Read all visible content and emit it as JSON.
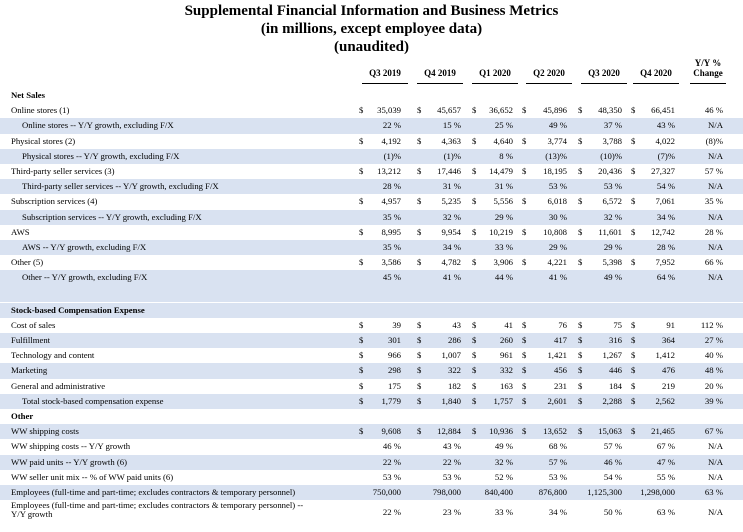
{
  "title_lines": [
    "Supplemental Financial Information and Business Metrics",
    "(in millions, except employee data)",
    "(unaudited)"
  ],
  "columns": [
    "Q3 2019",
    "Q4 2019",
    "Q1 2020",
    "Q2 2020",
    "Q3 2020",
    "Q4 2020",
    "Y/Y %\nChange"
  ],
  "sections": [
    {
      "header": "Net Sales",
      "rows": [
        {
          "label": "Online stores (1)",
          "indent": false,
          "dollar": true,
          "values": [
            "35,039",
            "45,657",
            "36,652",
            "45,896",
            "48,350",
            "66,451"
          ],
          "yoy": "46 %"
        },
        {
          "label": "Online stores -- Y/Y growth, excluding F/X",
          "indent": true,
          "dollar": false,
          "values": [
            "22 %",
            "15 %",
            "25 %",
            "49 %",
            "37 %",
            "43 %"
          ],
          "yoy": "N/A"
        },
        {
          "label": "Physical stores (2)",
          "indent": false,
          "dollar": true,
          "values": [
            "4,192",
            "4,363",
            "4,640",
            "3,774",
            "3,788",
            "4,022"
          ],
          "yoy": "(8)%"
        },
        {
          "label": "Physical stores -- Y/Y growth, excluding F/X",
          "indent": true,
          "dollar": false,
          "values": [
            "(1)%",
            "(1)%",
            "8 %",
            "(13)%",
            "(10)%",
            "(7)%"
          ],
          "yoy": "N/A"
        },
        {
          "label": "Third-party seller services (3)",
          "indent": false,
          "dollar": true,
          "values": [
            "13,212",
            "17,446",
            "14,479",
            "18,195",
            "20,436",
            "27,327"
          ],
          "yoy": "57 %"
        },
        {
          "label": "Third-party seller services -- Y/Y growth, excluding F/X",
          "indent": true,
          "dollar": false,
          "values": [
            "28 %",
            "31 %",
            "31 %",
            "53 %",
            "53 %",
            "54 %"
          ],
          "yoy": "N/A"
        },
        {
          "label": "Subscription services (4)",
          "indent": false,
          "dollar": true,
          "values": [
            "4,957",
            "5,235",
            "5,556",
            "6,018",
            "6,572",
            "7,061"
          ],
          "yoy": "35 %"
        },
        {
          "label": "Subscription services -- Y/Y growth, excluding F/X",
          "indent": true,
          "dollar": false,
          "values": [
            "35 %",
            "32 %",
            "29 %",
            "30 %",
            "32 %",
            "34 %"
          ],
          "yoy": "N/A"
        },
        {
          "label": "AWS",
          "indent": false,
          "dollar": true,
          "values": [
            "8,995",
            "9,954",
            "10,219",
            "10,808",
            "11,601",
            "12,742"
          ],
          "yoy": "28 %"
        },
        {
          "label": "AWS -- Y/Y growth, excluding F/X",
          "indent": true,
          "dollar": false,
          "values": [
            "35 %",
            "34 %",
            "33 %",
            "29 %",
            "29 %",
            "28 %"
          ],
          "yoy": "N/A"
        },
        {
          "label": "Other (5)",
          "indent": false,
          "dollar": true,
          "values": [
            "3,586",
            "4,782",
            "3,906",
            "4,221",
            "5,398",
            "7,952"
          ],
          "yoy": "66 %"
        },
        {
          "label": "Other -- Y/Y growth, excluding F/X",
          "indent": true,
          "dollar": false,
          "values": [
            "45 %",
            "41 %",
            "44 %",
            "41 %",
            "49 %",
            "64 %"
          ],
          "yoy": "N/A"
        }
      ]
    },
    {
      "header": "Stock-based Compensation Expense",
      "rows": [
        {
          "label": "Cost of sales",
          "indent": false,
          "dollar": true,
          "values": [
            "39",
            "43",
            "41",
            "76",
            "75",
            "91"
          ],
          "yoy": "112 %"
        },
        {
          "label": "Fulfillment",
          "indent": false,
          "dollar": true,
          "values": [
            "301",
            "286",
            "260",
            "417",
            "316",
            "364"
          ],
          "yoy": "27 %"
        },
        {
          "label": "Technology and content",
          "indent": false,
          "dollar": true,
          "values": [
            "966",
            "1,007",
            "961",
            "1,421",
            "1,267",
            "1,412"
          ],
          "yoy": "40 %"
        },
        {
          "label": "Marketing",
          "indent": false,
          "dollar": true,
          "values": [
            "298",
            "322",
            "332",
            "456",
            "446",
            "476"
          ],
          "yoy": "48 %"
        },
        {
          "label": "General and administrative",
          "indent": false,
          "dollar": true,
          "values": [
            "175",
            "182",
            "163",
            "231",
            "184",
            "219"
          ],
          "yoy": "20 %"
        },
        {
          "label": "Total stock-based compensation expense",
          "indent": true,
          "dollar": true,
          "values": [
            "1,779",
            "1,840",
            "1,757",
            "2,601",
            "2,288",
            "2,562"
          ],
          "yoy": "39 %"
        }
      ]
    },
    {
      "header": "Other",
      "rows": [
        {
          "label": "WW shipping costs",
          "indent": false,
          "dollar": true,
          "values": [
            "9,608",
            "12,884",
            "10,936",
            "13,652",
            "15,063",
            "21,465"
          ],
          "yoy": "67 %"
        },
        {
          "label": "WW shipping costs -- Y/Y growth",
          "indent": false,
          "dollar": false,
          "values": [
            "46 %",
            "43 %",
            "49 %",
            "68 %",
            "57 %",
            "67 %"
          ],
          "yoy": "N/A"
        },
        {
          "label": "WW paid units -- Y/Y growth (6)",
          "indent": false,
          "dollar": false,
          "values": [
            "22 %",
            "22 %",
            "32 %",
            "57 %",
            "46 %",
            "47 %"
          ],
          "yoy": "N/A"
        },
        {
          "label": "WW seller unit mix -- % of WW paid units (6)",
          "indent": false,
          "dollar": false,
          "values": [
            "53 %",
            "53 %",
            "52 %",
            "53 %",
            "54 %",
            "55 %"
          ],
          "yoy": "N/A"
        },
        {
          "label": "Employees (full-time and part-time; excludes contractors & temporary personnel)",
          "indent": false,
          "dollar": false,
          "values": [
            "750,000",
            "798,000",
            "840,400",
            "876,800",
            "1,125,300",
            "1,298,000"
          ],
          "yoy": "63 %"
        },
        {
          "label": "Employees (full-time and part-time; excludes contractors & temporary personnel) --\nY/Y growth",
          "indent": false,
          "dollar": false,
          "values": [
            "22 %",
            "23 %",
            "33 %",
            "34 %",
            "50 %",
            "63 %"
          ],
          "yoy": "N/A"
        }
      ]
    }
  ],
  "dollar_sign": "$"
}
